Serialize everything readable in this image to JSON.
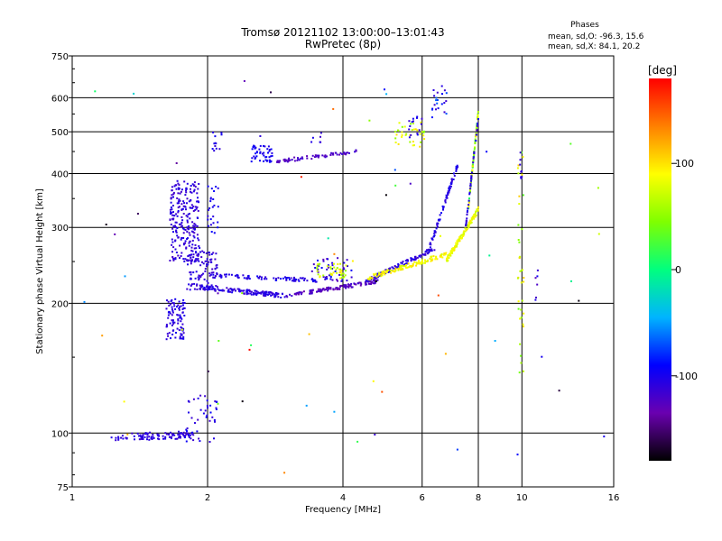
{
  "chart_data": {
    "type": "scatter",
    "title": "Tromsø 20121102 13:00:00–13:01:43",
    "subtitle": "RwPretec (8p)",
    "xlabel": "Frequency [MHz]",
    "ylabel": "Stationary phase Virtual Height [km]",
    "x_scale": "log",
    "y_scale": "log",
    "xlim": [
      1,
      16
    ],
    "ylim": [
      75,
      750
    ],
    "x_ticks": [
      1,
      2,
      4,
      6,
      8,
      10,
      16
    ],
    "x_tick_labels": [
      "1",
      "2",
      "4",
      "6",
      "8",
      "10",
      "16"
    ],
    "y_ticks": [
      75,
      100,
      200,
      300,
      400,
      500,
      600,
      750
    ],
    "y_tick_labels": [
      "75",
      "100",
      "200",
      "300",
      "400",
      "500",
      "600",
      "750"
    ],
    "grid": true,
    "phases": {
      "title": "Phases",
      "line_o": "mean, sd,O: -96.3, 15.6",
      "line_x": "mean, sd,X:  84.1, 20.2"
    },
    "colorbar": {
      "label": "[deg]",
      "range": [
        -180,
        180
      ],
      "ticks": [
        100,
        0,
        -100
      ],
      "tick_labels": [
        "100",
        "0",
        "-100"
      ]
    },
    "clusters": [
      {
        "shape": "line",
        "x": [
          1.32,
          1.85
        ],
        "y": [
          98,
          99
        ],
        "dy": 0.02,
        "phase": -110,
        "jitter": 8,
        "n": 90
      },
      {
        "shape": "box",
        "x": [
          1.78,
          2.1
        ],
        "y": [
          95,
          125
        ],
        "phase": -105,
        "jitter": 15,
        "n": 45
      },
      {
        "shape": "box",
        "x": [
          1.22,
          1.32
        ],
        "y": [
          96,
          99
        ],
        "phase": -110,
        "jitter": 8,
        "n": 10
      },
      {
        "shape": "box",
        "x": [
          1.62,
          1.78
        ],
        "y": [
          165,
          205
        ],
        "phase": -108,
        "jitter": 10,
        "n": 90
      },
      {
        "shape": "box",
        "x": [
          1.65,
          1.92
        ],
        "y": [
          250,
          385
        ],
        "phase": -110,
        "jitter": 10,
        "n": 230
      },
      {
        "shape": "box",
        "x": [
          1.8,
          2.1
        ],
        "y": [
          215,
          265
        ],
        "phase": -110,
        "jitter": 10,
        "n": 110
      },
      {
        "shape": "box",
        "x": [
          2.0,
          2.12
        ],
        "y": [
          290,
          375
        ],
        "phase": -100,
        "jitter": 10,
        "n": 25
      },
      {
        "shape": "line",
        "x": [
          1.92,
          3.0
        ],
        "y": [
          218,
          208
        ],
        "dy": 0.012,
        "phase": -108,
        "jitter": 10,
        "n": 140
      },
      {
        "shape": "line",
        "x": [
          2.05,
          3.5
        ],
        "y": [
          232,
          226
        ],
        "dy": 0.01,
        "phase": -105,
        "jitter": 10,
        "n": 80
      },
      {
        "shape": "line",
        "x": [
          3.0,
          4.8
        ],
        "y": [
          208,
          225
        ],
        "dy": 0.01,
        "phase": -125,
        "jitter": 12,
        "n": 120
      },
      {
        "shape": "box",
        "x": [
          3.4,
          4.2
        ],
        "y": [
          225,
          255
        ],
        "phase": -110,
        "jitter": 20,
        "n": 45
      },
      {
        "shape": "box",
        "x": [
          3.5,
          4.1
        ],
        "y": [
          228,
          248
        ],
        "phase": 75,
        "jitter": 25,
        "n": 40
      },
      {
        "shape": "line",
        "x": [
          4.5,
          6.4
        ],
        "y": [
          225,
          268
        ],
        "dy": 0.012,
        "phase": -110,
        "jitter": 12,
        "n": 110
      },
      {
        "shape": "line",
        "x": [
          4.5,
          6.8
        ],
        "y": [
          228,
          260
        ],
        "dy": 0.012,
        "phase": 88,
        "jitter": 15,
        "n": 120
      },
      {
        "shape": "line",
        "x": [
          6.2,
          7.2
        ],
        "y": [
          265,
          420
        ],
        "dy": 0.015,
        "phase": -105,
        "jitter": 10,
        "n": 80
      },
      {
        "shape": "line",
        "x": [
          6.8,
          8.0
        ],
        "y": [
          252,
          330
        ],
        "dy": 0.014,
        "phase": 85,
        "jitter": 15,
        "n": 130
      },
      {
        "shape": "line",
        "x": [
          7.6,
          8.0
        ],
        "y": [
          330,
          560
        ],
        "dy": 0.01,
        "phase": 55,
        "jitter": 50,
        "n": 80
      },
      {
        "shape": "line",
        "x": [
          7.5,
          8.0
        ],
        "y": [
          300,
          540
        ],
        "dy": 0.01,
        "phase": -108,
        "jitter": 10,
        "n": 45
      },
      {
        "shape": "box",
        "x": [
          2.05,
          2.15
        ],
        "y": [
          440,
          500
        ],
        "phase": -105,
        "jitter": 10,
        "n": 12
      },
      {
        "shape": "box",
        "x": [
          2.5,
          2.8
        ],
        "y": [
          425,
          465
        ],
        "phase": -100,
        "jitter": 10,
        "n": 45
      },
      {
        "shape": "line",
        "x": [
          2.85,
          4.3
        ],
        "y": [
          427,
          450
        ],
        "dy": 0.01,
        "phase": -122,
        "jitter": 10,
        "n": 65
      },
      {
        "shape": "box",
        "x": [
          3.4,
          3.6
        ],
        "y": [
          460,
          500
        ],
        "phase": -110,
        "jitter": 10,
        "n": 6
      },
      {
        "shape": "box",
        "x": [
          5.2,
          6.1
        ],
        "y": [
          460,
          530
        ],
        "phase": 75,
        "jitter": 30,
        "n": 35
      },
      {
        "shape": "box",
        "x": [
          5.6,
          6.0
        ],
        "y": [
          480,
          550
        ],
        "phase": -105,
        "jitter": 10,
        "n": 15
      },
      {
        "shape": "box",
        "x": [
          6.3,
          6.8
        ],
        "y": [
          540,
          640
        ],
        "phase": -95,
        "jitter": 30,
        "n": 22
      },
      {
        "shape": "box",
        "x": [
          9.8,
          10.1
        ],
        "y": [
          130,
          450
        ],
        "phase": 70,
        "jitter": 40,
        "n": 38
      },
      {
        "shape": "box",
        "x": [
          9.9,
          10.0
        ],
        "y": [
          390,
          450
        ],
        "phase": -110,
        "jitter": 10,
        "n": 8
      },
      {
        "shape": "box",
        "x": [
          10.7,
          11.1
        ],
        "y": [
          200,
          240
        ],
        "phase": -110,
        "jitter": 20,
        "n": 6
      },
      {
        "shape": "box",
        "x": [
          1.05,
          15.5
        ],
        "y": [
          78,
          680
        ],
        "phase": 0,
        "jitter": 180,
        "n": 60
      }
    ]
  }
}
